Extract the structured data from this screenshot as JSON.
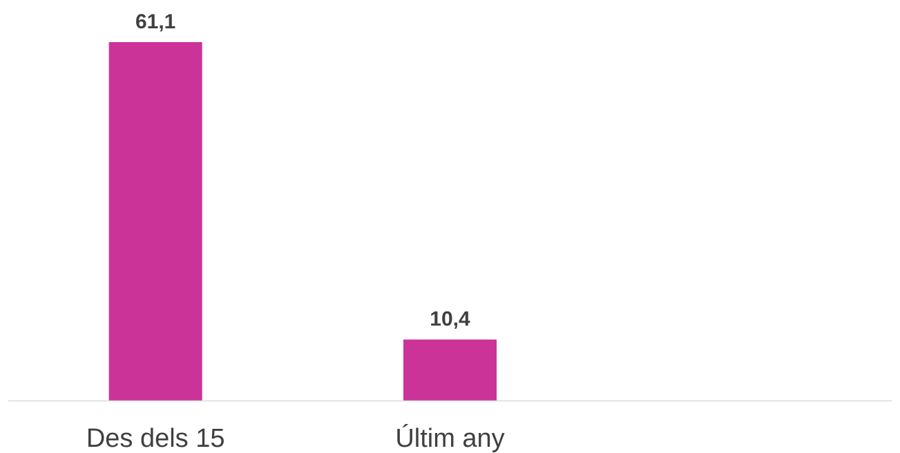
{
  "chart_data": {
    "type": "bar",
    "categories": [
      "Des dels 15",
      "Últim any"
    ],
    "values": [
      61.1,
      10.4
    ],
    "value_labels": [
      "61,1",
      "10,4"
    ],
    "slots": 3,
    "ylim": [
      0,
      61.1
    ],
    "grid": false,
    "legend": "none",
    "colors": {
      "bar": "#cc3399",
      "axis": "#d9d9d9",
      "text": "#404040"
    }
  }
}
